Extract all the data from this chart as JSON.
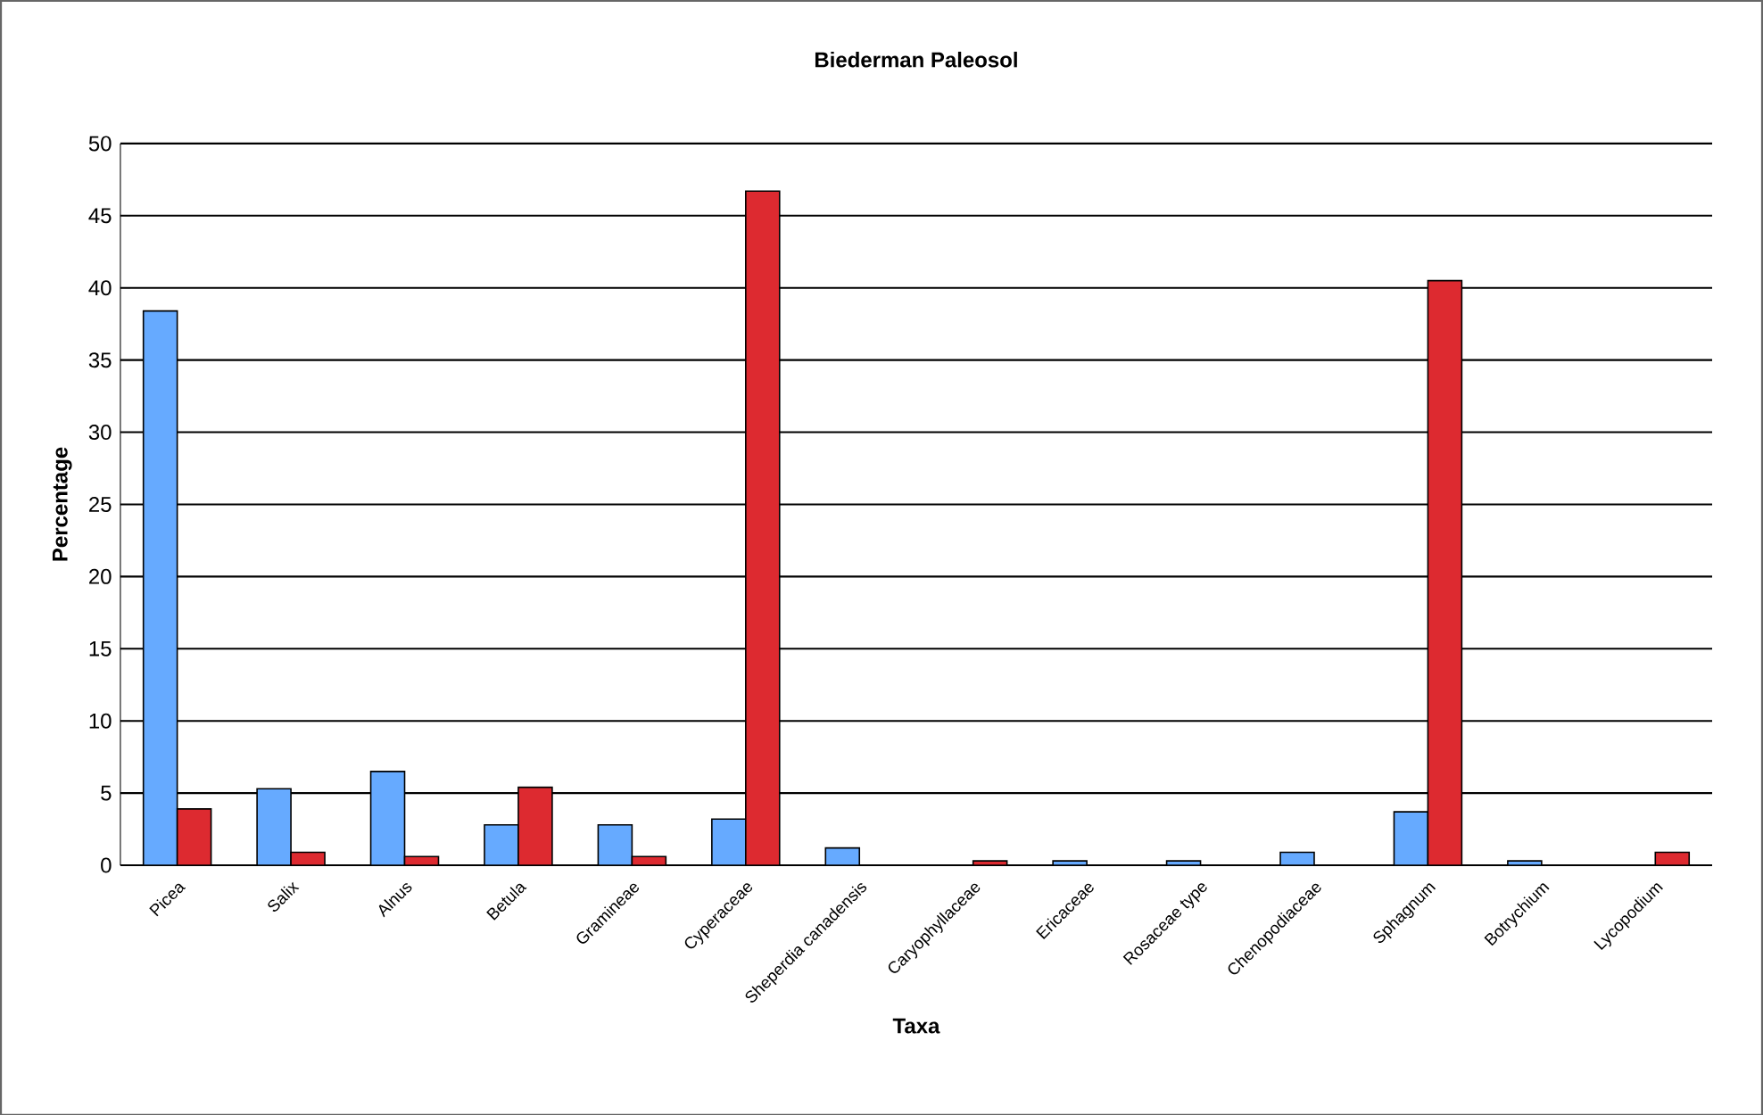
{
  "chart_data": {
    "type": "bar",
    "title": "Biederman Paleosol",
    "xlabel": "Taxa",
    "ylabel": "Percentage",
    "categories": [
      "Picea",
      "Salix",
      "Alnus",
      "Betula",
      "Gramineae",
      "Cyperaceae",
      "Sheperdia canadensis",
      "Caryophyllaceae",
      "Ericaceae",
      "Rosaceae type",
      "Chenopodiaceae",
      "Sphagnum",
      "Botrychium",
      "Lycopodium"
    ],
    "series": [
      {
        "color": "#66aaff",
        "values": [
          38.4,
          5.3,
          6.5,
          2.8,
          2.8,
          3.2,
          1.2,
          null,
          0.3,
          0.3,
          0.9,
          3.7,
          0.3,
          null
        ]
      },
      {
        "color": "#dd2a30",
        "values": [
          3.9,
          0.9,
          0.6,
          5.4,
          0.6,
          46.7,
          null,
          0.3,
          null,
          null,
          null,
          40.5,
          null,
          0.9
        ]
      }
    ],
    "ylim": [
      0,
      50
    ],
    "yticks": [
      0,
      5,
      10,
      15,
      20,
      25,
      30,
      35,
      40,
      45,
      50
    ],
    "grid": "y"
  }
}
